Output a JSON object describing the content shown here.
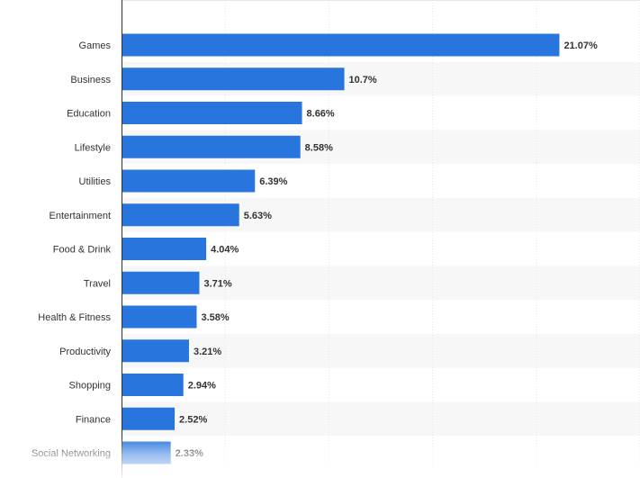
{
  "chart_data": {
    "type": "bar",
    "orientation": "horizontal",
    "categories": [
      "Games",
      "Business",
      "Education",
      "Lifestyle",
      "Utilities",
      "Entertainment",
      "Food & Drink",
      "Travel",
      "Health & Fitness",
      "Productivity",
      "Shopping",
      "Finance",
      "Social Networking"
    ],
    "values": [
      21.07,
      10.7,
      8.66,
      8.58,
      6.39,
      5.63,
      4.04,
      3.71,
      3.58,
      3.21,
      2.94,
      2.52,
      2.33
    ],
    "value_labels": [
      "21.07%",
      "10.7%",
      "8.66%",
      "8.58%",
      "6.39%",
      "5.63%",
      "4.04%",
      "3.71%",
      "3.58%",
      "3.21%",
      "2.94%",
      "2.52%",
      "2.33%"
    ],
    "xlim": [
      0,
      25
    ],
    "title": "",
    "xlabel": "",
    "ylabel": "",
    "grid": true,
    "bar_color": "#2876dd",
    "alt_row_color": "#f7f7f7"
  }
}
